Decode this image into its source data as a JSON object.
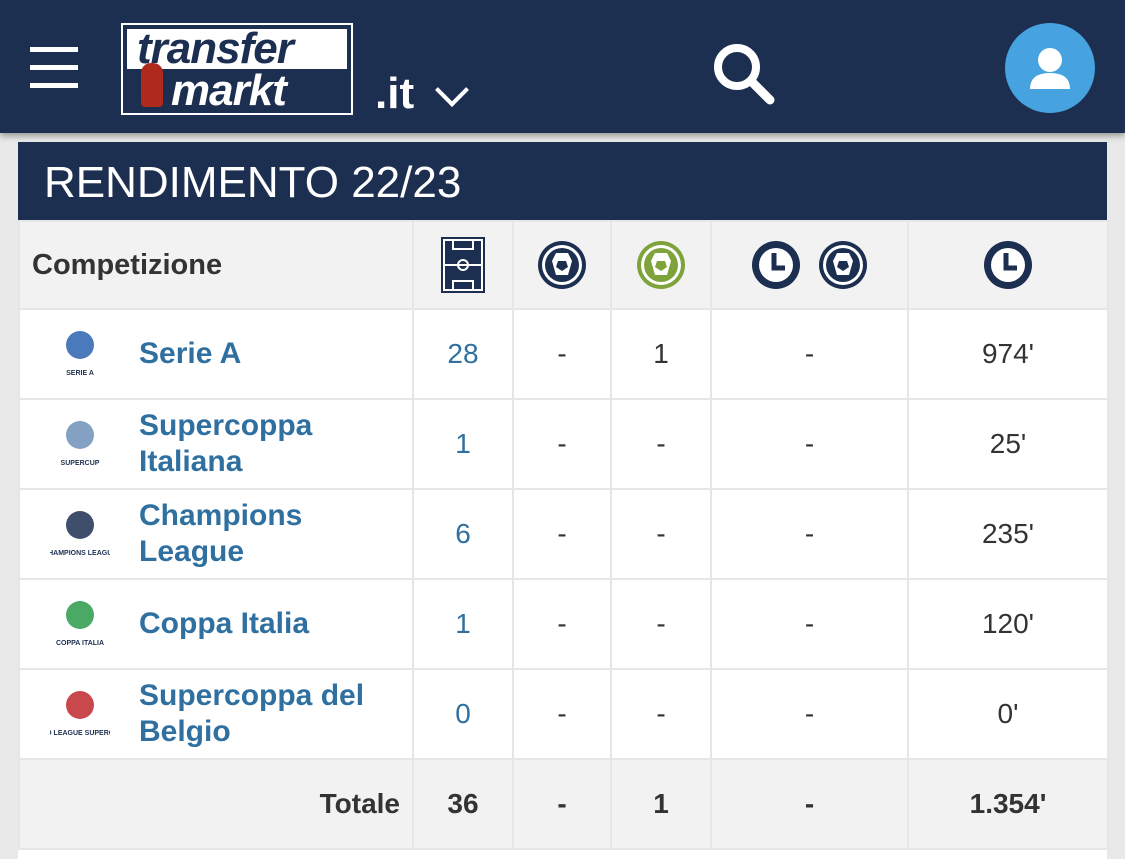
{
  "header": {
    "logo_top": "transfer",
    "logo_bottom": "markt",
    "domain": ".it"
  },
  "section": {
    "title": "RENDIMENTO 22/23"
  },
  "table": {
    "headers": {
      "competition": "Competizione",
      "icons": [
        "pitch-icon",
        "ball-icon",
        "assist-ball-icon",
        "clock-icon",
        "clock-ball-icon",
        "clock-icon"
      ]
    },
    "colors": {
      "navy": "#1d2f50",
      "assist_green": "#7fa33b",
      "link": "#2f70a0"
    },
    "rows": [
      {
        "competition": "Serie A",
        "logo_text": "SERIE A",
        "apps": "28",
        "goals": "-",
        "assists": "1",
        "min_per_goal": "-",
        "minutes": "974'"
      },
      {
        "competition": "Supercoppa Italiana",
        "logo_text": "SUPERCUP",
        "apps": "1",
        "goals": "-",
        "assists": "-",
        "min_per_goal": "-",
        "minutes": "25'"
      },
      {
        "competition": "Champions League",
        "logo_text": "CHAMPIONS LEAGUE",
        "apps": "6",
        "goals": "-",
        "assists": "-",
        "min_per_goal": "-",
        "minutes": "235'"
      },
      {
        "competition": "Coppa Italia",
        "logo_text": "COPPA ITALIA",
        "apps": "1",
        "goals": "-",
        "assists": "-",
        "min_per_goal": "-",
        "minutes": "120'"
      },
      {
        "competition": "Supercoppa del Belgio",
        "logo_text": "PRO LEAGUE SUPERCUP",
        "apps": "0",
        "goals": "-",
        "assists": "-",
        "min_per_goal": "-",
        "minutes": "0'"
      }
    ],
    "total": {
      "label": "Totale",
      "apps": "36",
      "goals": "-",
      "assists": "1",
      "min_per_goal": "-",
      "minutes": "1.354'"
    }
  }
}
